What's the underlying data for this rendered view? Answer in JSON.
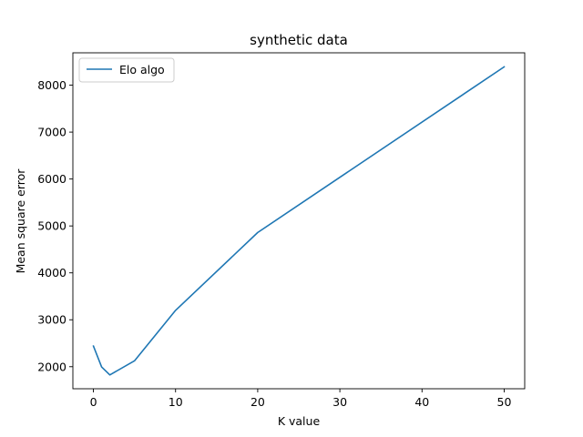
{
  "chart_data": {
    "type": "line",
    "title": "synthetic data",
    "xlabel": "K value",
    "ylabel": "Mean square error",
    "xlim": [
      -2.5,
      52.5
    ],
    "ylim": [
      1530,
      8690
    ],
    "xticks": [
      0,
      10,
      20,
      30,
      40,
      50
    ],
    "yticks": [
      2000,
      3000,
      4000,
      5000,
      6000,
      7000,
      8000
    ],
    "grid": false,
    "legend_position": "top-left",
    "series": [
      {
        "name": "Elo algo",
        "color": "#1f77b4",
        "x": [
          0,
          1,
          2,
          5,
          10,
          20,
          50
        ],
        "y": [
          2440,
          1995,
          1825,
          2125,
          3200,
          4860,
          8390
        ]
      }
    ]
  }
}
